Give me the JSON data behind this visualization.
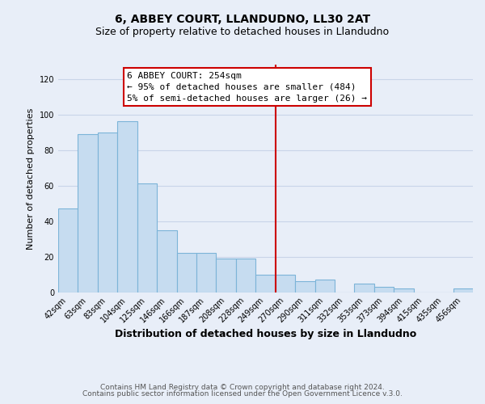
{
  "title": "6, ABBEY COURT, LLANDUDNO, LL30 2AT",
  "subtitle": "Size of property relative to detached houses in Llandudno",
  "xlabel": "Distribution of detached houses by size in Llandudno",
  "ylabel": "Number of detached properties",
  "bar_labels": [
    "42sqm",
    "63sqm",
    "83sqm",
    "104sqm",
    "125sqm",
    "146sqm",
    "166sqm",
    "187sqm",
    "208sqm",
    "228sqm",
    "249sqm",
    "270sqm",
    "290sqm",
    "311sqm",
    "332sqm",
    "353sqm",
    "373sqm",
    "394sqm",
    "415sqm",
    "435sqm",
    "456sqm"
  ],
  "bar_values": [
    47,
    89,
    90,
    96,
    61,
    35,
    22,
    22,
    19,
    19,
    10,
    10,
    6,
    7,
    0,
    5,
    3,
    2,
    0,
    0,
    2
  ],
  "bar_color": "#c6dcf0",
  "bar_edge_color": "#7cb4d8",
  "vline_x_index": 10,
  "vline_color": "#cc0000",
  "annotation_title": "6 ABBEY COURT: 254sqm",
  "annotation_line1": "← 95% of detached houses are smaller (484)",
  "annotation_line2": "5% of semi-detached houses are larger (26) →",
  "annotation_box_color": "#ffffff",
  "annotation_box_edge": "#cc0000",
  "ylim": [
    0,
    128
  ],
  "yticks": [
    0,
    20,
    40,
    60,
    80,
    100,
    120
  ],
  "footer1": "Contains HM Land Registry data © Crown copyright and database right 2024.",
  "footer2": "Contains public sector information licensed under the Open Government Licence v.3.0.",
  "bg_color": "#e8eef8",
  "plot_bg_color": "#e8eef8",
  "grid_color": "#c8d4e8",
  "title_fontsize": 10,
  "subtitle_fontsize": 9,
  "xlabel_fontsize": 9,
  "ylabel_fontsize": 8,
  "tick_fontsize": 7,
  "annotation_fontsize": 8,
  "footer_fontsize": 6.5
}
